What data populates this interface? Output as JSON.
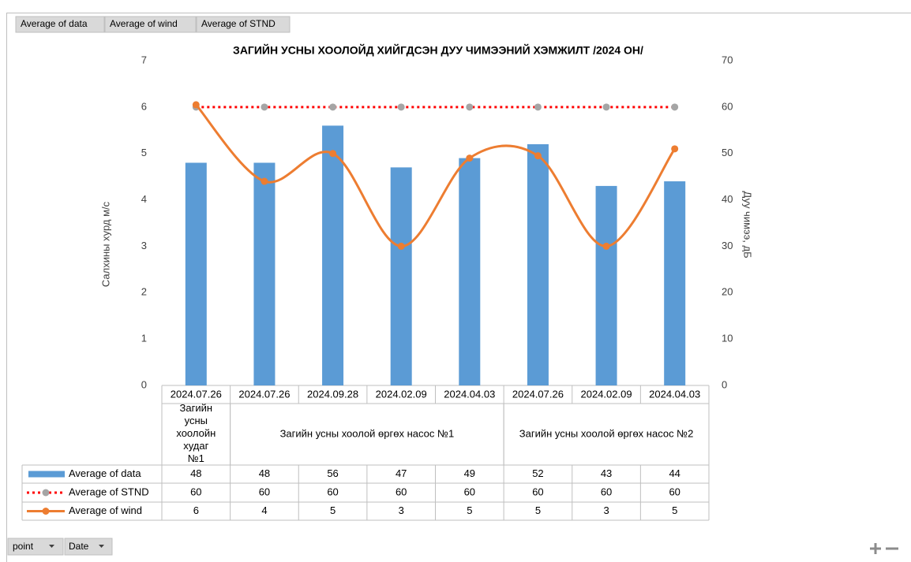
{
  "chart_data": {
    "type": "combo",
    "title": "ЗАГИЙН УСНЫ ХООЛОЙД ХИЙГДСЭН ДУУ ЧИМЭЭНИЙ ХЭМЖИЛТ /2024 ОН/",
    "y_label": "Салхины хурд м/с",
    "y2_label": "Дуу чимээ, дБ",
    "categories": [
      "2024.07.26",
      "2024.07.26",
      "2024.09.28",
      "2024.02.09",
      "2024.04.03",
      "2024.07.26",
      "2024.02.09",
      "2024.04.03"
    ],
    "category_groups": [
      "Загийн усны хоолойн худаг №1",
      "Загийн усны хоолой өргөх насос №1",
      "Загийн усны хоолой өргөх насос №1",
      "Загийн усны хоолой өргөх насос №1",
      "Загийн усны хоолой өргөх насос №1",
      "Загийн усны хоолой өргөх насос №2",
      "Загийн усны хоолой өргөх насос №2",
      "Загийн усны хоолой өргөх насос №2"
    ],
    "series": [
      {
        "name": "Average of data",
        "kind": "bar",
        "color": "#5b9bd5",
        "axis": "y2",
        "values": [
          48,
          48,
          56,
          47,
          49,
          52,
          43,
          44
        ]
      },
      {
        "name": "Average of STND",
        "kind": "dotted-line",
        "color": "#ff0000",
        "marker_color": "#a5a5a5",
        "axis": "y2",
        "values": [
          60,
          60,
          60,
          60,
          60,
          60,
          60,
          60
        ]
      },
      {
        "name": "Average of wind",
        "kind": "smooth-line",
        "color": "#ed7d31",
        "axis": "y",
        "values": [
          6.05,
          4.4,
          5.0,
          3.0,
          4.9,
          4.95,
          3.0,
          5.1
        ],
        "value_labels": [
          "6",
          "4",
          "5",
          "3",
          "5",
          "5",
          "3",
          "5"
        ]
      }
    ],
    "ylim": [
      0,
      7
    ],
    "yticks": [
      0,
      1,
      2,
      3,
      4,
      5,
      6,
      7
    ],
    "y2lim": [
      0,
      70
    ],
    "y2ticks": [
      0,
      10,
      20,
      30,
      40,
      50,
      60,
      70
    ],
    "grid": false,
    "field_buttons": [
      "point",
      "Date"
    ]
  }
}
